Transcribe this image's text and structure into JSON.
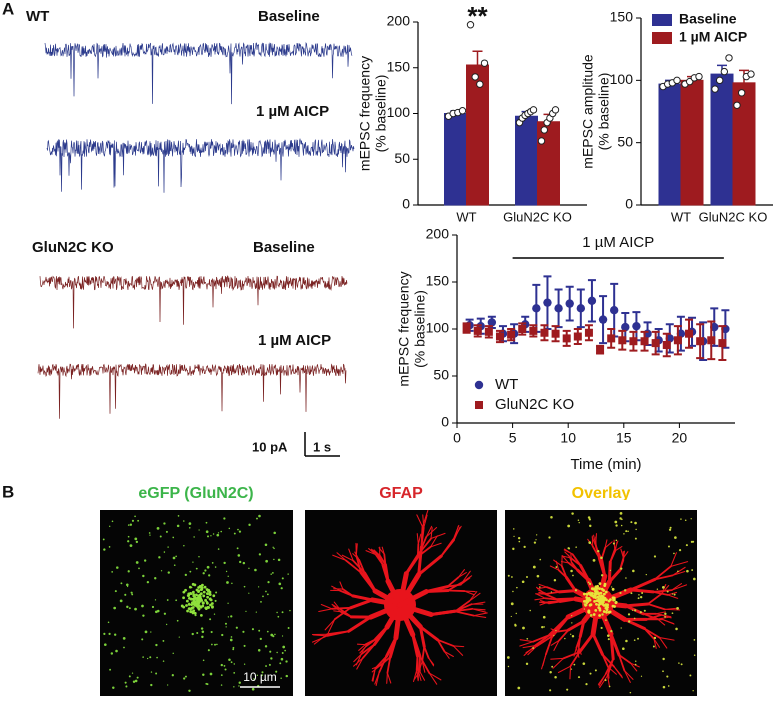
{
  "panel_labels": [
    "A",
    "B"
  ],
  "traces": {
    "wt_label": "WT",
    "ko_label": "GluN2C KO",
    "baseline_label": "Baseline",
    "drug_label": "1 µM AICP",
    "scale_current": "10 pA",
    "scale_time": "1 s"
  },
  "chart_data": [
    {
      "type": "bar",
      "ylabel": [
        "mEPSC frequency",
        "(% baseline)"
      ],
      "categories": [
        "WT",
        "GluN2C KO"
      ],
      "series": [
        {
          "name": "Baseline",
          "color": "#2e3192",
          "values": [
            100,
            97
          ],
          "errors": [
            3,
            5
          ],
          "points": [
            [
              97,
              100,
              101,
              103
            ],
            [
              90,
              95,
              98,
              100,
              102,
              104
            ]
          ]
        },
        {
          "name": "1 µM AICP",
          "color": "#9e1b1f",
          "values": [
            153,
            91
          ],
          "errors": [
            15,
            8
          ],
          "points": [
            [
              197,
              140,
              132,
              155
            ],
            [
              70,
              82,
              90,
              95,
              100,
              104
            ]
          ]
        }
      ],
      "ylim": [
        0,
        200
      ],
      "yticks": [
        0,
        50,
        100,
        150,
        200
      ],
      "annotations": [
        "**"
      ],
      "legend": false
    },
    {
      "type": "bar",
      "ylabel": [
        "mEPSC amplitude",
        "(% baseline)"
      ],
      "categories": [
        "WT",
        "GluN2C KO"
      ],
      "series": [
        {
          "name": "Baseline",
          "color": "#2e3192",
          "values": [
            97,
            105
          ],
          "errors": [
            3,
            7
          ],
          "points": [
            [
              95,
              97,
              98,
              100
            ],
            [
              93,
              100,
              107,
              118
            ]
          ]
        },
        {
          "name": "1 µM AICP",
          "color": "#9e1b1f",
          "values": [
            100,
            98
          ],
          "errors": [
            3,
            10
          ],
          "points": [
            [
              97,
              99,
              102,
              103
            ],
            [
              80,
              90,
              103,
              105
            ]
          ]
        }
      ],
      "ylim": [
        0,
        150
      ],
      "yticks": [
        0,
        50,
        100,
        150
      ],
      "legend": "top-left"
    },
    {
      "type": "scatter",
      "ylabel": [
        "mEPSC frequency",
        "(% baseline)"
      ],
      "xlabel": "Time (min)",
      "x": [
        1,
        2,
        3,
        4,
        5,
        6,
        7,
        8,
        9,
        10,
        11,
        12,
        13,
        14,
        15,
        16,
        17,
        18,
        19,
        20,
        21,
        22,
        23,
        24
      ],
      "series": [
        {
          "name": "WT",
          "color": "#2e3192",
          "marker": "circle",
          "values": [
            104,
            103,
            107,
            95,
            95,
            105,
            122,
            128,
            122,
            127,
            122,
            130,
            110,
            120,
            102,
            103,
            95,
            88,
            90,
            95,
            97,
            87,
            102,
            100
          ],
          "errors": [
            6,
            8,
            6,
            8,
            10,
            8,
            25,
            28,
            20,
            18,
            20,
            22,
            25,
            28,
            15,
            15,
            12,
            12,
            15,
            18,
            15,
            20,
            20,
            20
          ]
        },
        {
          "name": "GluN2C KO",
          "color": "#9e1b1f",
          "marker": "square",
          "values": [
            101,
            98,
            97,
            92,
            94,
            100,
            98,
            96,
            95,
            90,
            92,
            96,
            78,
            90,
            88,
            87,
            87,
            85,
            83,
            88,
            95,
            87,
            88,
            85
          ],
          "errors": [
            5,
            6,
            6,
            6,
            6,
            6,
            6,
            8,
            8,
            8,
            8,
            8,
            4,
            10,
            10,
            10,
            10,
            12,
            12,
            15,
            15,
            18,
            20,
            18
          ]
        }
      ],
      "xlim": [
        0,
        25
      ],
      "xticks": [
        0,
        5,
        10,
        15,
        20
      ],
      "ylim": [
        0,
        200
      ],
      "yticks": [
        0,
        50,
        100,
        150,
        200
      ],
      "annotation": "1 µM AICP",
      "annotation_span": [
        5,
        24
      ],
      "legend": "bottom-left"
    }
  ],
  "images": {
    "titles": [
      "eGFP (GluN2C)",
      "GFAP",
      "Overlay"
    ],
    "scale_bar": "10 µm"
  }
}
